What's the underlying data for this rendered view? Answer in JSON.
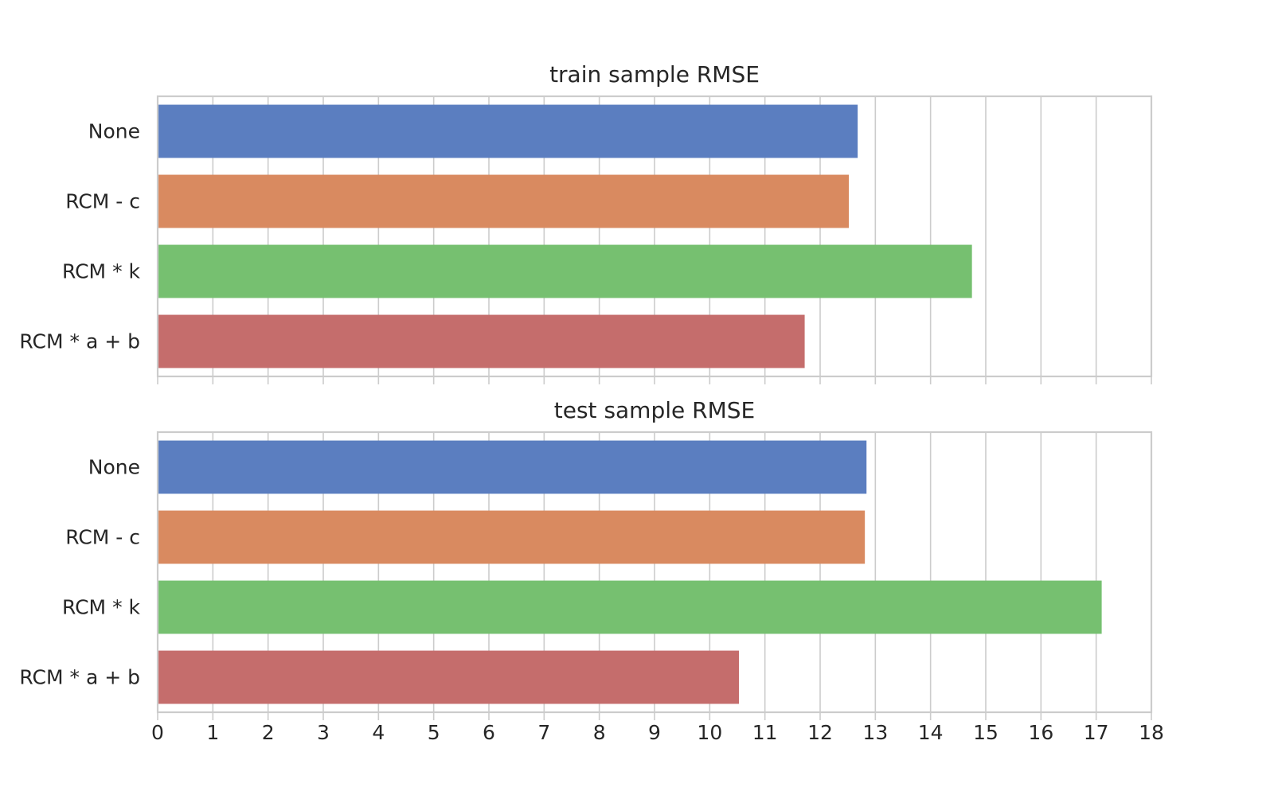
{
  "chart_data": [
    {
      "type": "bar",
      "orientation": "horizontal",
      "title": "train sample RMSE",
      "categories": [
        "None",
        "RCM - c",
        "RCM * k",
        "RCM * a + b"
      ],
      "values": [
        12.68,
        12.52,
        14.75,
        11.72
      ],
      "colors": [
        "#5b7ec0",
        "#d98a60",
        "#76c070",
        "#c56d6c"
      ],
      "xlim": [
        0,
        18
      ],
      "xticks": [
        "0",
        "1",
        "2",
        "3",
        "4",
        "5",
        "6",
        "7",
        "8",
        "9",
        "10",
        "11",
        "12",
        "13",
        "14",
        "15",
        "16",
        "17",
        "18"
      ],
      "xtick_labels_shown": false,
      "grid": "vertical"
    },
    {
      "type": "bar",
      "orientation": "horizontal",
      "title": "test sample RMSE",
      "categories": [
        "None",
        "RCM - c",
        "RCM * k",
        "RCM * a + b"
      ],
      "values": [
        12.84,
        12.81,
        17.1,
        10.53
      ],
      "colors": [
        "#5b7ec0",
        "#d98a60",
        "#76c070",
        "#c56d6c"
      ],
      "xlim": [
        0,
        18
      ],
      "xticks": [
        "0",
        "1",
        "2",
        "3",
        "4",
        "5",
        "6",
        "7",
        "8",
        "9",
        "10",
        "11",
        "12",
        "13",
        "14",
        "15",
        "16",
        "17",
        "18"
      ],
      "xtick_labels_shown": true,
      "grid": "vertical"
    }
  ]
}
